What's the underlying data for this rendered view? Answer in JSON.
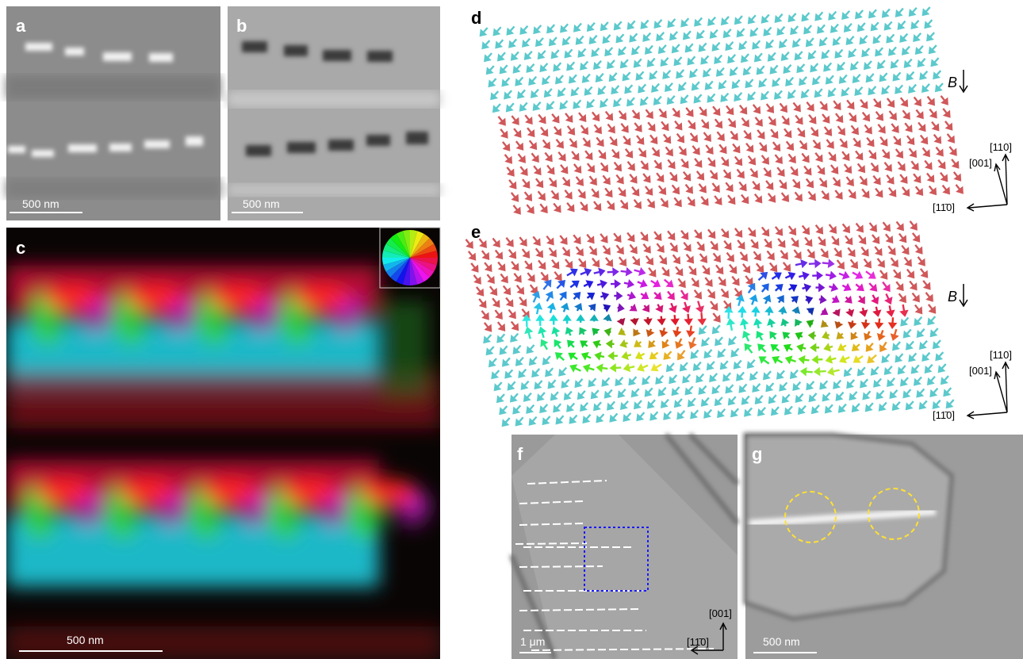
{
  "panels": [
    {
      "label": "a",
      "scale_bar": "500 nm"
    },
    {
      "label": "b",
      "scale_bar": "500 nm"
    },
    {
      "label": "c",
      "scale_bar": "500 nm"
    },
    {
      "label": "d",
      "field_label": "B",
      "axes": [
        "[110]",
        "[001]",
        "[11̄0]"
      ]
    },
    {
      "label": "e",
      "field_label": "B",
      "axes": [
        "[110]",
        "[001]",
        "[11̄0]"
      ]
    },
    {
      "label": "f",
      "scale_bar": "1 μm",
      "axes": [
        "[001]",
        "[11̄0]"
      ]
    },
    {
      "label": "g",
      "scale_bar": "500 nm"
    }
  ]
}
